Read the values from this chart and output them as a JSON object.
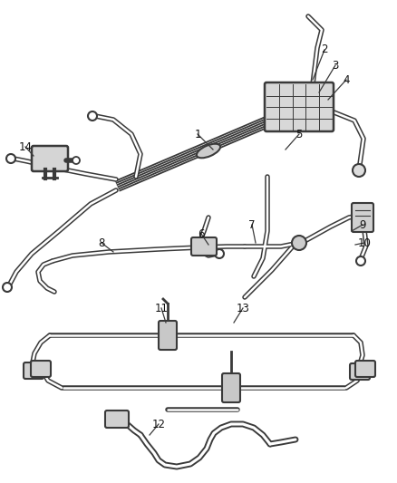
{
  "background_color": "#ffffff",
  "line_color": "#3a3a3a",
  "text_color": "#111111",
  "font_size": 8.5,
  "figsize": [
    4.38,
    5.33
  ],
  "dpi": 100
}
